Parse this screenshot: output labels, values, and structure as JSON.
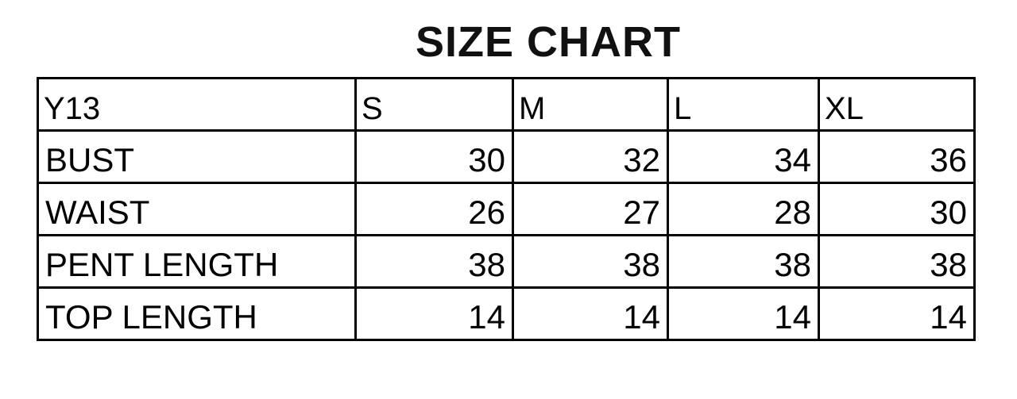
{
  "title": "SIZE CHART",
  "table": {
    "headers": [
      "Y13",
      "S",
      "M",
      "L",
      "XL"
    ],
    "rows": [
      {
        "label": "BUST",
        "values": [
          "30",
          "32",
          "34",
          "36"
        ]
      },
      {
        "label": "WAIST",
        "values": [
          "26",
          "27",
          "28",
          "30"
        ]
      },
      {
        "label": "PENT LENGTH",
        "values": [
          "38",
          "38",
          "38",
          "38"
        ]
      },
      {
        "label": "TOP LENGTH",
        "values": [
          "14",
          "14",
          "14",
          "14"
        ]
      }
    ]
  }
}
